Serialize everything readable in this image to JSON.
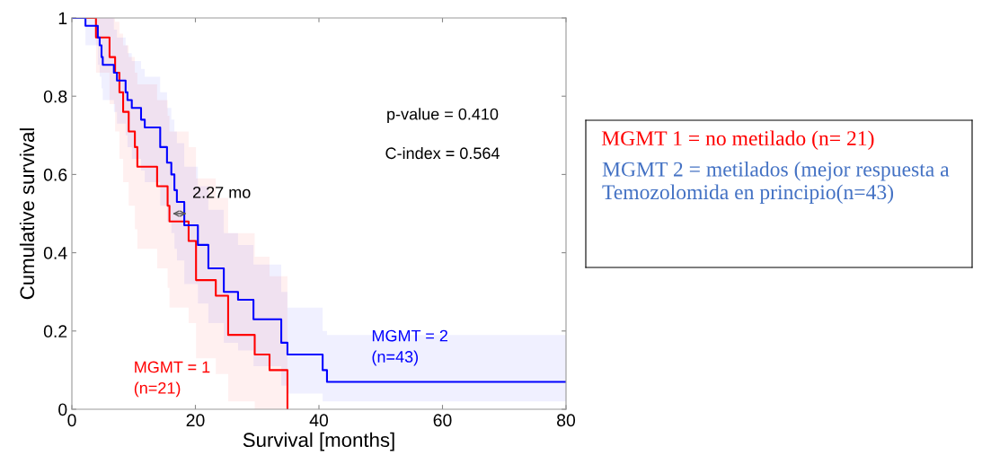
{
  "chart_data": {
    "type": "step",
    "xlabel": "Survival [months]",
    "ylabel": "Cumulative survival",
    "xlim": [
      0,
      80
    ],
    "ylim": [
      0,
      1
    ],
    "xticks": [
      0,
      20,
      40,
      60,
      80
    ],
    "yticks": [
      0,
      0.2,
      0.4,
      0.6,
      0.8,
      1
    ],
    "grid": false,
    "legend": false,
    "series": [
      {
        "name": "MGMT = 1\n(n=21)",
        "color": "#ff0000",
        "x": [
          0,
          3.9,
          6.1,
          7.0,
          7.7,
          8.3,
          9.2,
          10.2,
          10.6,
          13.8,
          15.5,
          15.8,
          18.9,
          20.1,
          23.3,
          25.3,
          29.6,
          32.0,
          34.9
        ],
        "values": [
          1,
          0.95,
          0.9,
          0.86,
          0.81,
          0.76,
          0.71,
          0.67,
          0.62,
          0.57,
          0.52,
          0.48,
          0.43,
          0.33,
          0.29,
          0.19,
          0.14,
          0.1,
          0
        ],
        "upper": [
          1,
          1,
          1,
          0.99,
          0.96,
          0.93,
          0.9,
          0.86,
          0.83,
          0.79,
          0.75,
          0.71,
          0.67,
          0.59,
          0.54,
          0.45,
          0.39,
          0.34,
          0
        ],
        "lower": [
          1,
          0.86,
          0.78,
          0.71,
          0.64,
          0.58,
          0.52,
          0.46,
          0.41,
          0.36,
          0.31,
          0.26,
          0.22,
          0.13,
          0.09,
          0.02,
          0,
          0,
          0
        ]
      },
      {
        "name": "MGMT = 2\n(n=43)",
        "color": "#0000ff",
        "x": [
          0,
          2.2,
          4.2,
          4.5,
          4.8,
          5.0,
          6.8,
          7.3,
          8.7,
          9.0,
          9.7,
          11.2,
          11.8,
          14.3,
          15.4,
          16.1,
          16.6,
          17.0,
          18.2,
          20.4,
          22.1,
          24.6,
          26.9,
          29.4,
          33.9,
          34.9,
          40.6,
          41.3,
          80
        ],
        "values": [
          1,
          0.98,
          0.95,
          0.93,
          0.9,
          0.88,
          0.86,
          0.84,
          0.81,
          0.79,
          0.77,
          0.74,
          0.72,
          0.67,
          0.63,
          0.6,
          0.56,
          0.53,
          0.47,
          0.42,
          0.36,
          0.3,
          0.28,
          0.23,
          0.17,
          0.14,
          0.1,
          0.07,
          0.07
        ],
        "upper": [
          1,
          1,
          1,
          1,
          1,
          1,
          0.97,
          0.95,
          0.93,
          0.91,
          0.89,
          0.87,
          0.85,
          0.81,
          0.77,
          0.74,
          0.71,
          0.68,
          0.62,
          0.57,
          0.51,
          0.45,
          0.42,
          0.37,
          0.3,
          0.26,
          0.2,
          0.19,
          0.19
        ],
        "lower": [
          1,
          0.93,
          0.88,
          0.85,
          0.82,
          0.79,
          0.76,
          0.73,
          0.7,
          0.67,
          0.64,
          0.61,
          0.58,
          0.52,
          0.48,
          0.45,
          0.41,
          0.38,
          0.32,
          0.27,
          0.22,
          0.17,
          0.15,
          0.11,
          0.06,
          0.04,
          0.02,
          0.02,
          0.02
        ]
      }
    ],
    "annotations": [
      "p-value = 0.410",
      "C-index = 0.564",
      {
        "text": "2.27 mo",
        "x": 16.3,
        "y": 0.5
      },
      "MGMT 1 = no metilado (n= 21)",
      "MGMT 2 = metilados (mejor respuesta a Temozolomida en principio(n=43)"
    ]
  }
}
